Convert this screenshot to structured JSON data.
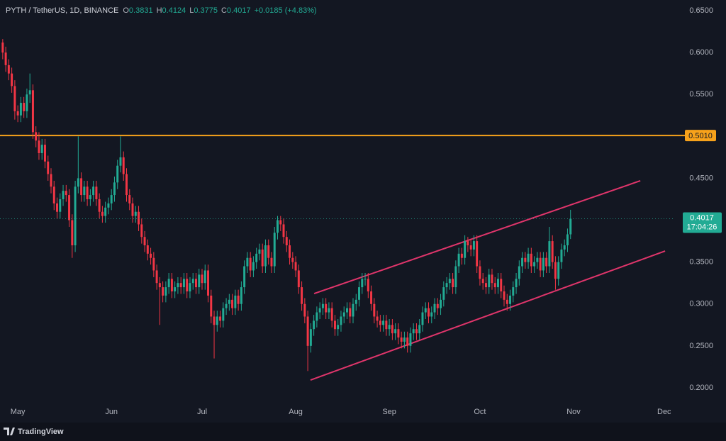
{
  "chart_data": {
    "type": "candlestick",
    "title": "PYTH / TetherUS, 1D, BINANCE",
    "legend_labels": [
      "O",
      "H",
      "L",
      "C"
    ],
    "change": "+0.0185 (+4.83%)",
    "up_color": "#22ab94",
    "down_color": "#f23645",
    "categories": [
      null,
      null,
      null,
      null,
      null,
      null,
      null,
      null,
      null,
      null,
      null,
      null,
      null,
      null,
      null,
      null,
      null,
      null,
      null,
      null,
      null,
      null,
      null,
      null,
      null,
      null,
      null,
      null,
      null,
      null,
      null,
      null,
      null,
      null,
      null,
      null,
      null,
      null,
      null,
      null,
      null,
      null,
      null,
      null,
      null,
      null,
      null,
      null,
      null,
      null,
      null,
      null,
      null,
      null,
      null,
      null,
      null,
      null,
      null,
      null,
      null,
      null,
      null,
      null,
      null,
      null,
      null,
      null,
      null,
      null,
      null,
      null,
      null,
      null,
      null,
      null,
      null,
      null,
      null,
      null,
      null,
      null,
      null,
      null,
      null,
      null,
      null,
      null,
      null,
      null,
      null,
      null,
      null,
      null,
      null,
      null,
      null,
      null,
      null,
      null,
      null,
      null,
      null,
      null,
      null,
      null,
      null,
      null,
      null,
      null,
      null,
      null,
      null,
      null,
      null,
      null,
      null,
      null,
      null,
      null,
      null,
      null,
      null,
      null,
      null,
      null,
      null,
      null,
      null,
      null,
      null,
      null,
      null,
      null,
      null,
      null,
      null,
      null,
      null,
      null,
      null,
      null,
      null,
      null,
      null,
      null,
      null,
      null,
      null,
      null,
      null,
      null,
      null,
      null,
      null,
      null,
      null,
      null,
      null,
      null,
      null,
      null,
      null,
      null,
      null,
      null,
      null,
      null,
      null,
      null,
      null,
      null,
      null,
      null,
      null,
      null,
      null,
      null,
      null,
      null,
      null,
      null,
      null,
      null,
      null,
      null,
      null,
      null,
      null
    ],
    "ohlc": [
      [
        0.612,
        0.616,
        0.592,
        0.6
      ],
      [
        0.6,
        0.607,
        0.577,
        0.585
      ],
      [
        0.585,
        0.592,
        0.567,
        0.575
      ],
      [
        0.575,
        0.582,
        0.552,
        0.56
      ],
      [
        0.56,
        0.567,
        0.52,
        0.53
      ],
      [
        0.53,
        0.537,
        0.517,
        0.525
      ],
      [
        0.525,
        0.547,
        0.517,
        0.54
      ],
      [
        0.54,
        0.547,
        0.522,
        0.53
      ],
      [
        0.53,
        0.557,
        0.522,
        0.55
      ],
      [
        0.55,
        0.575,
        0.54,
        0.555
      ],
      [
        0.555,
        0.562,
        0.497,
        0.505
      ],
      [
        0.505,
        0.512,
        0.487,
        0.495
      ],
      [
        0.495,
        0.505,
        0.472,
        0.48
      ],
      [
        0.48,
        0.497,
        0.472,
        0.49
      ],
      [
        0.49,
        0.497,
        0.462,
        0.47
      ],
      [
        0.47,
        0.477,
        0.447,
        0.455
      ],
      [
        0.455,
        0.462,
        0.432,
        0.44
      ],
      [
        0.44,
        0.447,
        0.412,
        0.42
      ],
      [
        0.42,
        0.427,
        0.402,
        0.41
      ],
      [
        0.41,
        0.432,
        0.402,
        0.425
      ],
      [
        0.425,
        0.442,
        0.417,
        0.435
      ],
      [
        0.435,
        0.442,
        0.422,
        0.43
      ],
      [
        0.43,
        0.437,
        0.392,
        0.4
      ],
      [
        0.4,
        0.407,
        0.355,
        0.37
      ],
      [
        0.37,
        0.447,
        0.362,
        0.44
      ],
      [
        0.44,
        0.5,
        0.432,
        0.45
      ],
      [
        0.45,
        0.457,
        0.422,
        0.43
      ],
      [
        0.43,
        0.447,
        0.422,
        0.44
      ],
      [
        0.44,
        0.447,
        0.417,
        0.425
      ],
      [
        0.425,
        0.437,
        0.417,
        0.43
      ],
      [
        0.43,
        0.447,
        0.422,
        0.44
      ],
      [
        0.44,
        0.447,
        0.417,
        0.425
      ],
      [
        0.425,
        0.432,
        0.402,
        0.41
      ],
      [
        0.41,
        0.417,
        0.397,
        0.405
      ],
      [
        0.405,
        0.422,
        0.397,
        0.415
      ],
      [
        0.415,
        0.427,
        0.407,
        0.42
      ],
      [
        0.42,
        0.437,
        0.412,
        0.43
      ],
      [
        0.43,
        0.452,
        0.422,
        0.445
      ],
      [
        0.445,
        0.472,
        0.437,
        0.465
      ],
      [
        0.465,
        0.5,
        0.457,
        0.475
      ],
      [
        0.475,
        0.482,
        0.447,
        0.455
      ],
      [
        0.455,
        0.462,
        0.422,
        0.43
      ],
      [
        0.43,
        0.437,
        0.412,
        0.42
      ],
      [
        0.42,
        0.427,
        0.397,
        0.405
      ],
      [
        0.405,
        0.417,
        0.397,
        0.41
      ],
      [
        0.41,
        0.417,
        0.387,
        0.395
      ],
      [
        0.395,
        0.402,
        0.372,
        0.38
      ],
      [
        0.38,
        0.387,
        0.362,
        0.37
      ],
      [
        0.37,
        0.377,
        0.352,
        0.36
      ],
      [
        0.36,
        0.367,
        0.347,
        0.355
      ],
      [
        0.355,
        0.362,
        0.332,
        0.34
      ],
      [
        0.34,
        0.347,
        0.317,
        0.325
      ],
      [
        0.325,
        0.332,
        0.275,
        0.32
      ],
      [
        0.32,
        0.327,
        0.302,
        0.31
      ],
      [
        0.31,
        0.327,
        0.302,
        0.32
      ],
      [
        0.32,
        0.337,
        0.312,
        0.33
      ],
      [
        0.33,
        0.337,
        0.307,
        0.315
      ],
      [
        0.315,
        0.327,
        0.307,
        0.32
      ],
      [
        0.32,
        0.332,
        0.312,
        0.325
      ],
      [
        0.325,
        0.332,
        0.312,
        0.32
      ],
      [
        0.32,
        0.337,
        0.312,
        0.33
      ],
      [
        0.33,
        0.337,
        0.307,
        0.315
      ],
      [
        0.315,
        0.332,
        0.307,
        0.325
      ],
      [
        0.325,
        0.337,
        0.317,
        0.33
      ],
      [
        0.33,
        0.337,
        0.312,
        0.32
      ],
      [
        0.32,
        0.342,
        0.312,
        0.335
      ],
      [
        0.335,
        0.342,
        0.317,
        0.325
      ],
      [
        0.325,
        0.347,
        0.317,
        0.34
      ],
      [
        0.34,
        0.347,
        0.302,
        0.31
      ],
      [
        0.31,
        0.317,
        0.277,
        0.285
      ],
      [
        0.285,
        0.292,
        0.235,
        0.275
      ],
      [
        0.275,
        0.292,
        0.267,
        0.285
      ],
      [
        0.285,
        0.292,
        0.272,
        0.28
      ],
      [
        0.28,
        0.302,
        0.272,
        0.295
      ],
      [
        0.295,
        0.307,
        0.287,
        0.3
      ],
      [
        0.3,
        0.312,
        0.292,
        0.305
      ],
      [
        0.305,
        0.312,
        0.287,
        0.295
      ],
      [
        0.295,
        0.317,
        0.287,
        0.31
      ],
      [
        0.31,
        0.317,
        0.292,
        0.3
      ],
      [
        0.3,
        0.327,
        0.292,
        0.32
      ],
      [
        0.32,
        0.352,
        0.312,
        0.345
      ],
      [
        0.345,
        0.362,
        0.337,
        0.355
      ],
      [
        0.355,
        0.362,
        0.332,
        0.34
      ],
      [
        0.34,
        0.357,
        0.332,
        0.35
      ],
      [
        0.35,
        0.367,
        0.342,
        0.36
      ],
      [
        0.36,
        0.372,
        0.352,
        0.365
      ],
      [
        0.365,
        0.372,
        0.337,
        0.345
      ],
      [
        0.345,
        0.377,
        0.337,
        0.37
      ],
      [
        0.37,
        0.377,
        0.347,
        0.355
      ],
      [
        0.355,
        0.362,
        0.337,
        0.345
      ],
      [
        0.345,
        0.392,
        0.337,
        0.385
      ],
      [
        0.385,
        0.405,
        0.377,
        0.4
      ],
      [
        0.4,
        0.405,
        0.387,
        0.395
      ],
      [
        0.395,
        0.402,
        0.372,
        0.38
      ],
      [
        0.38,
        0.387,
        0.362,
        0.37
      ],
      [
        0.37,
        0.377,
        0.347,
        0.355
      ],
      [
        0.355,
        0.362,
        0.342,
        0.35
      ],
      [
        0.35,
        0.357,
        0.332,
        0.34
      ],
      [
        0.34,
        0.347,
        0.312,
        0.32
      ],
      [
        0.32,
        0.327,
        0.292,
        0.3
      ],
      [
        0.3,
        0.307,
        0.277,
        0.285
      ],
      [
        0.285,
        0.292,
        0.22,
        0.25
      ],
      [
        0.25,
        0.277,
        0.242,
        0.27
      ],
      [
        0.27,
        0.287,
        0.262,
        0.28
      ],
      [
        0.28,
        0.297,
        0.272,
        0.29
      ],
      [
        0.29,
        0.302,
        0.282,
        0.295
      ],
      [
        0.295,
        0.307,
        0.287,
        0.3
      ],
      [
        0.3,
        0.307,
        0.282,
        0.29
      ],
      [
        0.29,
        0.302,
        0.282,
        0.295
      ],
      [
        0.295,
        0.302,
        0.272,
        0.28
      ],
      [
        0.28,
        0.287,
        0.262,
        0.27
      ],
      [
        0.27,
        0.282,
        0.262,
        0.275
      ],
      [
        0.275,
        0.292,
        0.267,
        0.285
      ],
      [
        0.285,
        0.297,
        0.277,
        0.29
      ],
      [
        0.29,
        0.302,
        0.282,
        0.295
      ],
      [
        0.295,
        0.302,
        0.277,
        0.285
      ],
      [
        0.285,
        0.307,
        0.277,
        0.3
      ],
      [
        0.3,
        0.312,
        0.292,
        0.305
      ],
      [
        0.305,
        0.327,
        0.297,
        0.32
      ],
      [
        0.32,
        0.337,
        0.312,
        0.33
      ],
      [
        0.33,
        0.337,
        0.322,
        0.33
      ],
      [
        0.33,
        0.337,
        0.307,
        0.315
      ],
      [
        0.315,
        0.322,
        0.292,
        0.3
      ],
      [
        0.3,
        0.307,
        0.277,
        0.285
      ],
      [
        0.285,
        0.292,
        0.272,
        0.28
      ],
      [
        0.28,
        0.287,
        0.267,
        0.275
      ],
      [
        0.275,
        0.287,
        0.267,
        0.28
      ],
      [
        0.28,
        0.287,
        0.262,
        0.27
      ],
      [
        0.27,
        0.282,
        0.262,
        0.275
      ],
      [
        0.275,
        0.282,
        0.257,
        0.265
      ],
      [
        0.265,
        0.277,
        0.257,
        0.27
      ],
      [
        0.27,
        0.277,
        0.252,
        0.26
      ],
      [
        0.26,
        0.267,
        0.247,
        0.255
      ],
      [
        0.255,
        0.267,
        0.247,
        0.26
      ],
      [
        0.26,
        0.267,
        0.242,
        0.25
      ],
      [
        0.25,
        0.272,
        0.242,
        0.265
      ],
      [
        0.265,
        0.277,
        0.257,
        0.27
      ],
      [
        0.27,
        0.277,
        0.257,
        0.265
      ],
      [
        0.265,
        0.282,
        0.257,
        0.275
      ],
      [
        0.275,
        0.297,
        0.267,
        0.29
      ],
      [
        0.29,
        0.302,
        0.282,
        0.295
      ],
      [
        0.295,
        0.302,
        0.277,
        0.285
      ],
      [
        0.285,
        0.297,
        0.277,
        0.29
      ],
      [
        0.29,
        0.307,
        0.282,
        0.3
      ],
      [
        0.3,
        0.307,
        0.287,
        0.295
      ],
      [
        0.295,
        0.312,
        0.287,
        0.305
      ],
      [
        0.305,
        0.327,
        0.297,
        0.32
      ],
      [
        0.32,
        0.332,
        0.312,
        0.325
      ],
      [
        0.325,
        0.337,
        0.317,
        0.33
      ],
      [
        0.33,
        0.337,
        0.312,
        0.32
      ],
      [
        0.32,
        0.352,
        0.312,
        0.345
      ],
      [
        0.345,
        0.367,
        0.337,
        0.36
      ],
      [
        0.36,
        0.367,
        0.347,
        0.355
      ],
      [
        0.355,
        0.382,
        0.347,
        0.375
      ],
      [
        0.375,
        0.38,
        0.362,
        0.37
      ],
      [
        0.37,
        0.377,
        0.357,
        0.365
      ],
      [
        0.365,
        0.382,
        0.357,
        0.375
      ],
      [
        0.375,
        0.382,
        0.337,
        0.345
      ],
      [
        0.345,
        0.352,
        0.322,
        0.33
      ],
      [
        0.33,
        0.337,
        0.317,
        0.325
      ],
      [
        0.325,
        0.332,
        0.312,
        0.32
      ],
      [
        0.32,
        0.342,
        0.312,
        0.335
      ],
      [
        0.335,
        0.342,
        0.317,
        0.325
      ],
      [
        0.325,
        0.332,
        0.312,
        0.32
      ],
      [
        0.32,
        0.337,
        0.312,
        0.33
      ],
      [
        0.33,
        0.337,
        0.307,
        0.315
      ],
      [
        0.315,
        0.322,
        0.297,
        0.305
      ],
      [
        0.305,
        0.312,
        0.292,
        0.3
      ],
      [
        0.3,
        0.317,
        0.292,
        0.31
      ],
      [
        0.31,
        0.327,
        0.302,
        0.32
      ],
      [
        0.32,
        0.337,
        0.312,
        0.33
      ],
      [
        0.33,
        0.352,
        0.322,
        0.345
      ],
      [
        0.345,
        0.362,
        0.337,
        0.355
      ],
      [
        0.355,
        0.362,
        0.342,
        0.35
      ],
      [
        0.35,
        0.367,
        0.342,
        0.36
      ],
      [
        0.36,
        0.367,
        0.337,
        0.345
      ],
      [
        0.345,
        0.357,
        0.337,
        0.35
      ],
      [
        0.35,
        0.362,
        0.342,
        0.355
      ],
      [
        0.355,
        0.362,
        0.332,
        0.34
      ],
      [
        0.34,
        0.362,
        0.332,
        0.355
      ],
      [
        0.355,
        0.362,
        0.337,
        0.345
      ],
      [
        0.345,
        0.392,
        0.337,
        0.375
      ],
      [
        0.375,
        0.382,
        0.342,
        0.35
      ],
      [
        0.35,
        0.357,
        0.317,
        0.33
      ],
      [
        0.33,
        0.357,
        0.322,
        0.35
      ],
      [
        0.35,
        0.372,
        0.342,
        0.365
      ],
      [
        0.365,
        0.377,
        0.357,
        0.37
      ],
      [
        0.37,
        0.39,
        0.362,
        0.3831
      ],
      [
        0.3831,
        0.4124,
        0.3775,
        0.4017
      ]
    ],
    "xlim": [
      -0.9,
      222.1
    ],
    "xticks": [
      {
        "value": 5,
        "label": "May"
      },
      {
        "value": 36,
        "label": "Jun"
      },
      {
        "value": 66,
        "label": "Jul"
      },
      {
        "value": 97,
        "label": "Aug"
      },
      {
        "value": 128,
        "label": "Sep"
      },
      {
        "value": 158,
        "label": "Oct"
      },
      {
        "value": 189,
        "label": "Nov"
      },
      {
        "value": 219,
        "label": "Dec"
      }
    ],
    "ylim": [
      0.1805,
      0.6627
    ],
    "yticks": [
      {
        "value": 0.2,
        "label": "0.2000"
      },
      {
        "value": 0.25,
        "label": "0.2500"
      },
      {
        "value": 0.3,
        "label": "0.3000"
      },
      {
        "value": 0.35,
        "label": "0.3500"
      },
      {
        "value": 0.4,
        "label": "0.4000"
      },
      {
        "value": 0.45,
        "label": "0.4500"
      },
      {
        "value": 0.5,
        "label": "0.5000"
      },
      {
        "value": 0.55,
        "label": "0.5500"
      },
      {
        "value": 0.6,
        "label": "0.6000"
      },
      {
        "value": 0.65,
        "label": "0.6500"
      }
    ],
    "grid": false,
    "level": {
      "value": 0.501,
      "label": "0.5010",
      "color": "#f7a21b"
    },
    "trend_lines": [
      {
        "color": "#e0356b",
        "points": [
          [
            103.1,
            0.3124
          ],
          [
            211.1,
            0.447
          ]
        ]
      },
      {
        "color": "#e0356b",
        "points": [
          [
            101.9,
            0.2092
          ],
          [
            219.3,
            0.3632
          ]
        ]
      }
    ],
    "countdown": "17:04:26"
  },
  "branding": "TradingView"
}
